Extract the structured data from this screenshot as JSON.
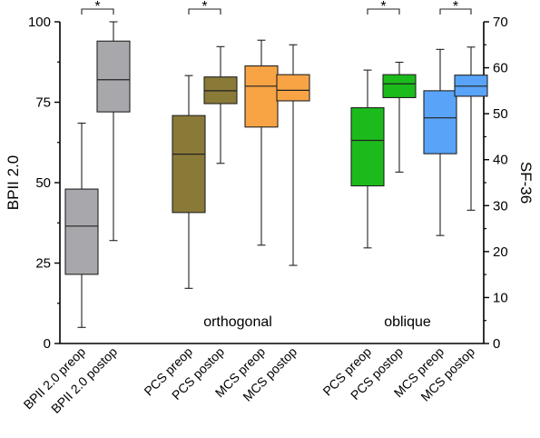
{
  "chart_data": {
    "type": "boxplot",
    "ylabel_left": "BPII 2.0",
    "ylabel_right": "SF-36",
    "ylim_left": [
      0,
      100
    ],
    "yticks_left": [
      "0",
      "25",
      "50",
      "75",
      "100"
    ],
    "ylim_right": [
      0,
      70
    ],
    "yticks_right": [
      "0",
      "10",
      "20",
      "30",
      "40",
      "50",
      "60",
      "70"
    ],
    "grid": false,
    "boxes": [
      {
        "label": "BPII 2.0 preop",
        "axis": "left",
        "color": "#a8a7ac",
        "min": 5,
        "q1": 21.5,
        "median": 36.5,
        "q3": 48,
        "max": 68.5
      },
      {
        "label": "BPII 2.0 postop",
        "axis": "left",
        "color": "#a8a7ac",
        "min": 32,
        "q1": 72,
        "median": 82,
        "q3": 94,
        "max": 100
      },
      {
        "label": "PCS preop",
        "axis": "right",
        "color": "#8a7a38",
        "min": 12,
        "q1": 28.5,
        "median": 41.2,
        "q3": 49.6,
        "max": 58.3
      },
      {
        "label": "PCS postop",
        "axis": "right",
        "color": "#8a7a38",
        "min": 39.2,
        "q1": 52.2,
        "median": 55,
        "q3": 58,
        "max": 64.6
      },
      {
        "label": "MCS preop",
        "axis": "right",
        "color": "#f8a445",
        "min": 21.4,
        "q1": 47.1,
        "median": 56,
        "q3": 60.4,
        "max": 66
      },
      {
        "label": "MCS postop",
        "axis": "right",
        "color": "#f8a445",
        "min": 17,
        "q1": 52.8,
        "median": 55.1,
        "q3": 58.5,
        "max": 65
      },
      {
        "label": "PCS preop",
        "axis": "right",
        "color": "#1bbb1b",
        "min": 20.8,
        "q1": 34.3,
        "median": 44.2,
        "q3": 51.3,
        "max": 59.5
      },
      {
        "label": "PCS postop",
        "axis": "right",
        "color": "#1bbb1b",
        "min": 37.3,
        "q1": 53.5,
        "median": 56.5,
        "q3": 58.5,
        "max": 61.2
      },
      {
        "label": "MCS preop",
        "axis": "right",
        "color": "#59a4f8",
        "min": 23.5,
        "q1": 41.3,
        "median": 49.1,
        "q3": 55,
        "max": 64
      },
      {
        "label": "MCS postop",
        "axis": "right",
        "color": "#59a4f8",
        "min": 29,
        "q1": 53.8,
        "median": 56,
        "q3": 58.4,
        "max": 64.5
      }
    ],
    "significance": [
      {
        "from": 0,
        "to": 1,
        "label": "*"
      },
      {
        "from": 2,
        "to": 3,
        "label": "*"
      },
      {
        "from": 6,
        "to": 7,
        "label": "*"
      },
      {
        "from": 8,
        "to": 9,
        "label": "*"
      }
    ],
    "group_labels": [
      {
        "text": "orthogonal",
        "boxes": [
          2,
          5
        ]
      },
      {
        "text": "oblique",
        "boxes": [
          6,
          9
        ]
      }
    ]
  }
}
